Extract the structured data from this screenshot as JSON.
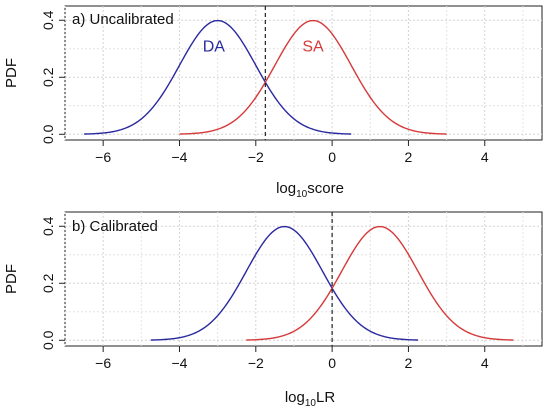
{
  "colors": {
    "da": "#2a2aa0",
    "sa": "#d63a3a",
    "grid": "#d3d3d3",
    "axis": "#222222",
    "threshold": "#222222"
  },
  "chart_data": [
    {
      "type": "line",
      "panel_label": "a) Uncalibrated",
      "xlabel": {
        "base": "log",
        "subscript": "10",
        "rest": "score"
      },
      "ylabel": "PDF",
      "xlim": [
        -7,
        5.5
      ],
      "ylim": [
        -0.02,
        0.45
      ],
      "xticks": [
        -6,
        -4,
        -2,
        0,
        2,
        4
      ],
      "yticks": [
        0.0,
        0.2,
        0.4
      ],
      "ytick_labels": [
        "0.0",
        "0.2",
        "0.4"
      ],
      "grid": true,
      "threshold_x": -1.75,
      "series": [
        {
          "name": "DA",
          "distribution": "normal",
          "mean": -3.0,
          "sd": 1.0,
          "x_range": [
            -6.5,
            0.5
          ],
          "color_key": "da",
          "label_at": [
            -3.1,
            0.29
          ]
        },
        {
          "name": "SA",
          "distribution": "normal",
          "mean": -0.5,
          "sd": 1.0,
          "x_range": [
            -4.0,
            3.0
          ],
          "color_key": "sa",
          "label_at": [
            -0.5,
            0.29
          ]
        }
      ]
    },
    {
      "type": "line",
      "panel_label": "b) Calibrated",
      "xlabel": {
        "base": "log",
        "subscript": "10",
        "rest": "LR"
      },
      "ylabel": "PDF",
      "xlim": [
        -7,
        5.5
      ],
      "ylim": [
        -0.02,
        0.45
      ],
      "xticks": [
        -6,
        -4,
        -2,
        0,
        2,
        4
      ],
      "yticks": [
        0.0,
        0.2,
        0.4
      ],
      "ytick_labels": [
        "0.0",
        "0.2",
        "0.4"
      ],
      "grid": true,
      "threshold_x": 0.0,
      "series": [
        {
          "name": "",
          "distribution": "normal",
          "mean": -1.25,
          "sd": 1.0,
          "x_range": [
            -4.75,
            2.25
          ],
          "color_key": "da"
        },
        {
          "name": "",
          "distribution": "normal",
          "mean": 1.25,
          "sd": 1.0,
          "x_range": [
            -2.25,
            4.75
          ],
          "color_key": "sa"
        }
      ]
    }
  ]
}
